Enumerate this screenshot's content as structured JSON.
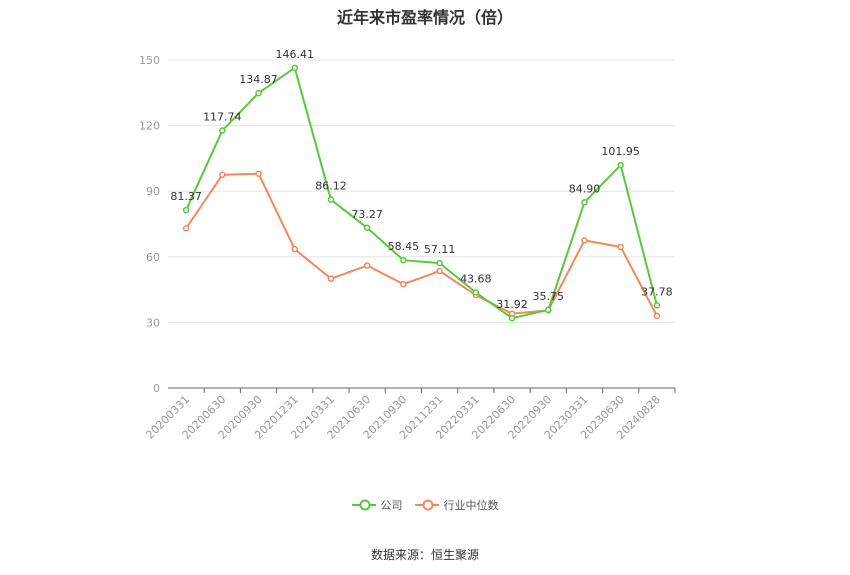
{
  "chart_data": {
    "type": "line",
    "title": "近年来市盈率情况（倍）",
    "categories": [
      "20200331",
      "20200630",
      "20200930",
      "20201231",
      "20210331",
      "20210630",
      "20210930",
      "20211231",
      "20220331",
      "20220630",
      "20220930",
      "20230331",
      "20230630",
      "20240828"
    ],
    "yticks": [
      0,
      30,
      60,
      90,
      120,
      150
    ],
    "ylim": [
      0,
      150
    ],
    "grid": true,
    "legend_position": "bottom",
    "series": [
      {
        "name": "公司",
        "color": "#5ac83c",
        "values": [
          81.37,
          117.74,
          134.87,
          146.41,
          86.12,
          73.27,
          58.45,
          57.11,
          43.68,
          31.92,
          35.75,
          84.9,
          101.95,
          37.78
        ],
        "labels": [
          "81.37",
          "117.74",
          "134.87",
          "146.41",
          "86.12",
          "73.27",
          "58.45",
          "57.11",
          "43.68",
          "31.92",
          "35.75",
          "84.90",
          "101.95",
          "37.78"
        ]
      },
      {
        "name": "行业中位数",
        "color": "#f08a5d",
        "values": [
          73,
          97.5,
          98,
          63.5,
          50,
          56,
          47.5,
          53.5,
          42.5,
          34,
          35.5,
          67.5,
          64.5,
          33
        ]
      }
    ]
  },
  "source": "数据来源：恒生聚源"
}
